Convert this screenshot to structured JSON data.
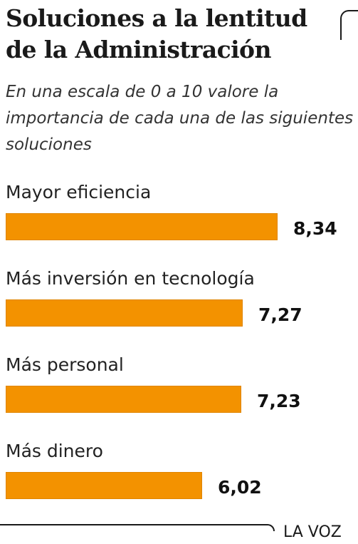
{
  "header": {
    "title": "Soluciones a la lentitud de la Administración",
    "subtitle": "En una escala de 0 a 10 valore la importancia de cada una de las siguientes soluciones"
  },
  "chart_data": {
    "type": "bar",
    "orientation": "horizontal",
    "title": "Soluciones a la lentitud de la Administración",
    "subtitle": "En una escala de 0 a 10 valore la importancia de cada una de las siguientes soluciones",
    "categories": [
      "Mayor eficiencia",
      "Más inversión en tecnología",
      "Más personal",
      "Más dinero"
    ],
    "values": [
      8.34,
      7.27,
      7.23,
      6.02
    ],
    "value_labels": [
      "8,34",
      "7,27",
      "7,23",
      "6,02"
    ],
    "scale": [
      0,
      10
    ],
    "bar_color": "#f39200",
    "grid": false,
    "legend": "none"
  },
  "footer": {
    "source": "LA VOZ"
  }
}
